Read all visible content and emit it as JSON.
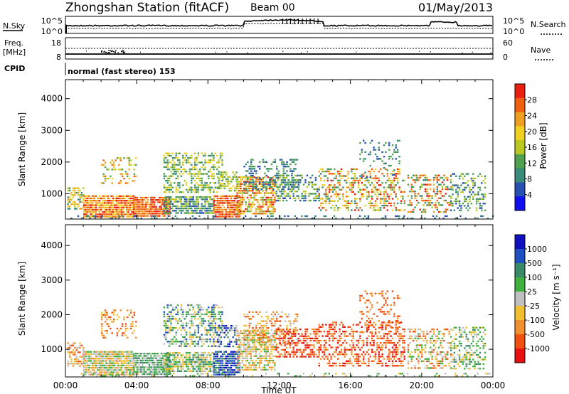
{
  "header": {
    "station": "Zhongshan Station (fitACF)",
    "beam": "Beam 00",
    "date": "01/May/2013"
  },
  "top_panel": {
    "left_label": "N.Sky",
    "left_ticks": [
      "10^5",
      "10^0"
    ],
    "right_ticks": [
      "10^5",
      "10^0"
    ],
    "right_label": "N.Search"
  },
  "freq_panel": {
    "label_top": "Freq.",
    "label_unit": "[MHz]",
    "left_ticks": [
      "18",
      "8"
    ],
    "right_ticks": [
      "60",
      "0"
    ],
    "right_label": "Nave"
  },
  "cpid": {
    "label": "CPID",
    "text": "normal (fast stereo) 153"
  },
  "colors": {
    "power_scale": [
      "#1010ee",
      "#2850b0",
      "#3a8a7a",
      "#50a050",
      "#b8c820",
      "#f0d020",
      "#f0a020",
      "#f06010",
      "#e82010"
    ],
    "velocity_scale": [
      "#1010c0",
      "#2050c0",
      "#3a8a6a",
      "#40b040",
      "#c0c0c0",
      "#f0c030",
      "#f09030",
      "#f05010",
      "#e81010"
    ]
  },
  "chart_data": [
    {
      "type": "heatmap",
      "name": "power-panel",
      "ylabel": "Slant Range [km]",
      "xlabel": "",
      "yticks": [
        "1000",
        "2000",
        "3000",
        "4000"
      ],
      "ylim": [
        200,
        4600
      ],
      "xlim": [
        0,
        24
      ],
      "colorbar_label": "Power [dB]",
      "colorbar_ticks": [
        "4",
        "8",
        "12",
        "16",
        "20",
        "24",
        "28"
      ],
      "colorbar_range": [
        0,
        32
      ]
    },
    {
      "type": "heatmap",
      "name": "velocity-panel",
      "ylabel": "Slant Range [km]",
      "xlabel": "Time UT",
      "xticks": [
        "00:00",
        "04:00",
        "08:00",
        "12:00",
        "16:00",
        "20:00",
        "00:00"
      ],
      "yticks": [
        "1000",
        "2000",
        "3000",
        "4000"
      ],
      "ylim": [
        200,
        4600
      ],
      "xlim": [
        0,
        24
      ],
      "colorbar_label": "Velocity [m s⁻¹]",
      "colorbar_ticks": [
        "1000",
        "500",
        "100",
        "25",
        "-25",
        "-100",
        "-500",
        "-1000"
      ]
    }
  ]
}
